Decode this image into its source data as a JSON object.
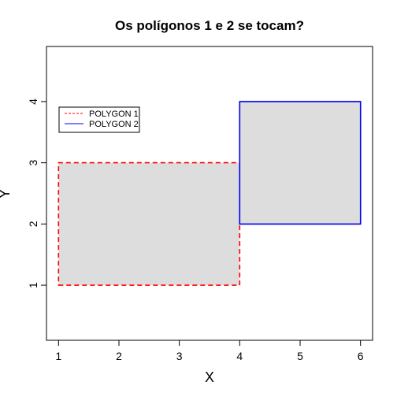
{
  "chart_data": {
    "type": "polygon",
    "title": "Os polígonos 1 e 2 se tocam?",
    "xlabel": "X",
    "ylabel": "Y",
    "xlim": [
      0.8,
      6.2
    ],
    "ylim": [
      0.1,
      4.9
    ],
    "x_ticks": [
      "1",
      "2",
      "3",
      "4",
      "5",
      "6"
    ],
    "y_ticks": [
      "1",
      "2",
      "3",
      "4"
    ],
    "grid": false,
    "legend_position": "top-left",
    "fill_color": "#dddddd",
    "series": [
      {
        "name": "POLYGON 1",
        "line_color": "#ff0000",
        "line_style": "dashed",
        "points": [
          [
            1,
            1
          ],
          [
            4,
            1
          ],
          [
            4,
            3
          ],
          [
            1,
            3
          ]
        ]
      },
      {
        "name": "POLYGON 2",
        "line_color": "#0000ee",
        "line_style": "solid",
        "points": [
          [
            4,
            2
          ],
          [
            6,
            2
          ],
          [
            6,
            4
          ],
          [
            4,
            4
          ]
        ]
      }
    ]
  }
}
